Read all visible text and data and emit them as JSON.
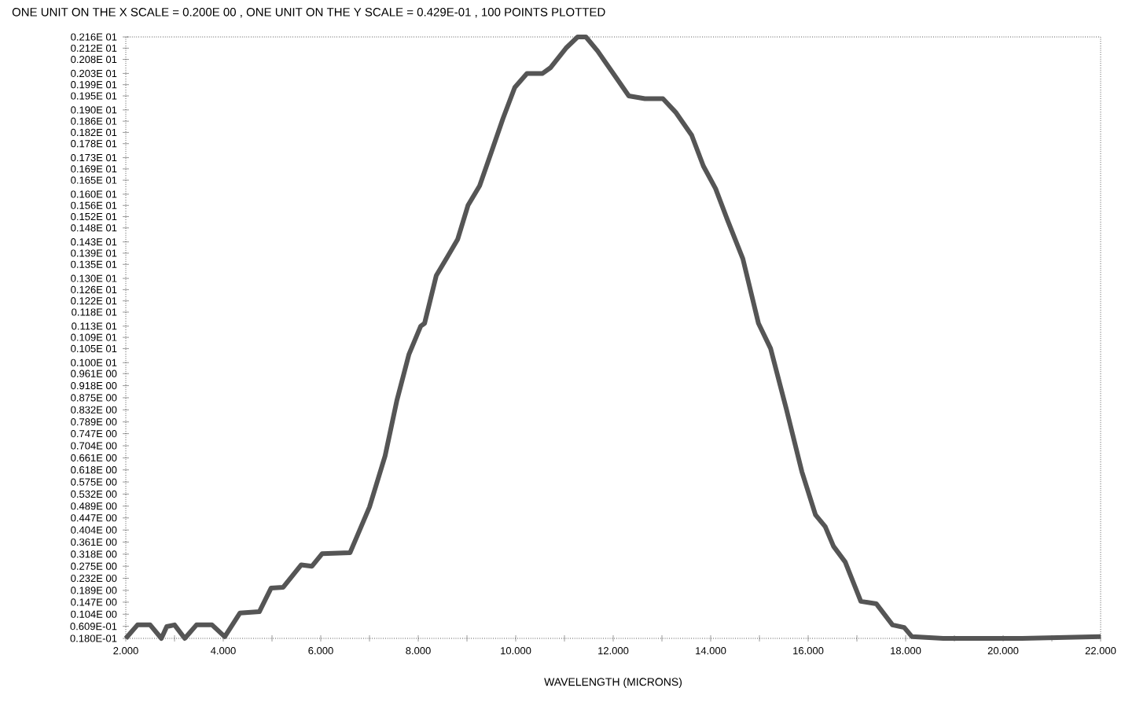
{
  "chart_data": {
    "type": "line",
    "title": "ONE UNIT ON THE X SCALE = 0.200E 00 ,        ONE UNIT ON THE Y SCALE = 0.429E-01 ,        100 POINTS PLOTTED",
    "xlabel": "WAVELENGTH (MICRONS)",
    "x": [
      2.0,
      2.24,
      2.5,
      2.73,
      2.84,
      3.0,
      3.21,
      3.45,
      3.77,
      4.03,
      4.34,
      4.74,
      4.98,
      5.23,
      5.6,
      5.82,
      6.03,
      6.6,
      6.76,
      7.0,
      7.32,
      7.56,
      7.81,
      8.05,
      8.13,
      8.37,
      8.61,
      8.81,
      9.02,
      9.26,
      9.5,
      9.74,
      9.98,
      10.23,
      10.55,
      10.71,
      11.03,
      11.27,
      11.44,
      11.68,
      12.08,
      12.32,
      12.65,
      13.02,
      13.29,
      13.61,
      13.85,
      14.1,
      14.34,
      14.66,
      14.98,
      15.23,
      15.55,
      15.87,
      16.15,
      16.35,
      16.52,
      16.76,
      17.08,
      17.4,
      17.73,
      17.97,
      18.13,
      18.77,
      20.39,
      22.0
    ],
    "series": [
      {
        "color": "#555555",
        "values": [
          0.018,
          0.066,
          0.066,
          0.018,
          0.06,
          0.066,
          0.018,
          0.066,
          0.066,
          0.024,
          0.108,
          0.113,
          0.197,
          0.2,
          0.28,
          0.275,
          0.32,
          0.323,
          0.388,
          0.486,
          0.668,
          0.864,
          1.03,
          1.13,
          1.14,
          1.31,
          1.38,
          1.44,
          1.56,
          1.63,
          1.75,
          1.87,
          1.98,
          2.03,
          2.03,
          2.05,
          2.12,
          2.16,
          2.16,
          2.11,
          2.01,
          1.95,
          1.94,
          1.94,
          1.89,
          1.81,
          1.7,
          1.62,
          1.51,
          1.37,
          1.14,
          1.05,
          0.836,
          0.612,
          0.458,
          0.416,
          0.346,
          0.29,
          0.15,
          0.141,
          0.066,
          0.057,
          0.024,
          0.018,
          0.018,
          0.024
        ]
      }
    ],
    "xlim": [
      2,
      22
    ],
    "xticks": [
      {
        "value": 2,
        "label": "2.000"
      },
      {
        "value": 3,
        "label": null
      },
      {
        "value": 4,
        "label": "4.000"
      },
      {
        "value": 5,
        "label": null
      },
      {
        "value": 6,
        "label": "6.000"
      },
      {
        "value": 7,
        "label": null
      },
      {
        "value": 8,
        "label": "8.000"
      },
      {
        "value": 9,
        "label": null
      },
      {
        "value": 10,
        "label": "10.000"
      },
      {
        "value": 11,
        "label": null
      },
      {
        "value": 12,
        "label": "12.000"
      },
      {
        "value": 13,
        "label": null
      },
      {
        "value": 14,
        "label": "14.000"
      },
      {
        "value": 15,
        "label": null
      },
      {
        "value": 16,
        "label": "16.000"
      },
      {
        "value": 17,
        "label": null
      },
      {
        "value": 18,
        "label": "18.000"
      },
      {
        "value": 19,
        "label": null
      },
      {
        "value": 20,
        "label": "20.000"
      },
      {
        "value": 21,
        "label": null
      },
      {
        "value": 22,
        "label": "22.000"
      }
    ],
    "ylim": [
      0.018,
      2.16
    ],
    "yticks": [
      {
        "value": 0.018,
        "label": "0.180E-01"
      },
      {
        "value": 0.0609,
        "label": "0.609E-01"
      },
      {
        "value": 0.104,
        "label": "0.104E 00"
      },
      {
        "value": 0.147,
        "label": "0.147E 00"
      },
      {
        "value": 0.189,
        "label": "0.189E 00"
      },
      {
        "value": 0.232,
        "label": "0.232E 00"
      },
      {
        "value": 0.275,
        "label": "0.275E 00"
      },
      {
        "value": 0.318,
        "label": "0.318E 00"
      },
      {
        "value": 0.361,
        "label": "0.361E 00"
      },
      {
        "value": 0.404,
        "label": "0.404E 00"
      },
      {
        "value": 0.447,
        "label": "0.447E 00"
      },
      {
        "value": 0.489,
        "label": "0.489E 00"
      },
      {
        "value": 0.532,
        "label": "0.532E 00"
      },
      {
        "value": 0.575,
        "label": "0.575E 00"
      },
      {
        "value": 0.618,
        "label": "0.618E 00"
      },
      {
        "value": 0.661,
        "label": "0.661E 00"
      },
      {
        "value": 0.704,
        "label": "0.704E 00"
      },
      {
        "value": 0.747,
        "label": "0.747E 00"
      },
      {
        "value": 0.789,
        "label": "0.789E 00"
      },
      {
        "value": 0.832,
        "label": "0.832E 00"
      },
      {
        "value": 0.875,
        "label": "0.875E 00"
      },
      {
        "value": 0.918,
        "label": "0.918E 00"
      },
      {
        "value": 0.961,
        "label": "0.961E 00"
      },
      {
        "value": 1.0,
        "label": "0.100E 01"
      },
      {
        "value": 1.05,
        "label": "0.105E 01"
      },
      {
        "value": 1.09,
        "label": "0.109E 01"
      },
      {
        "value": 1.13,
        "label": "0.113E 01"
      },
      {
        "value": 1.18,
        "label": "0.118E 01"
      },
      {
        "value": 1.22,
        "label": "0.122E 01"
      },
      {
        "value": 1.26,
        "label": "0.126E 01"
      },
      {
        "value": 1.3,
        "label": "0.130E 01"
      },
      {
        "value": 1.35,
        "label": "0.135E 01"
      },
      {
        "value": 1.39,
        "label": "0.139E 01"
      },
      {
        "value": 1.43,
        "label": "0.143E 01"
      },
      {
        "value": 1.48,
        "label": "0.148E 01"
      },
      {
        "value": 1.52,
        "label": "0.152E 01"
      },
      {
        "value": 1.56,
        "label": "0.156E 01"
      },
      {
        "value": 1.6,
        "label": "0.160E 01"
      },
      {
        "value": 1.65,
        "label": "0.165E 01"
      },
      {
        "value": 1.69,
        "label": "0.169E 01"
      },
      {
        "value": 1.73,
        "label": "0.173E 01"
      },
      {
        "value": 1.78,
        "label": "0.178E 01"
      },
      {
        "value": 1.82,
        "label": "0.182E 01"
      },
      {
        "value": 1.86,
        "label": "0.186E 01"
      },
      {
        "value": 1.9,
        "label": "0.190E 01"
      },
      {
        "value": 1.95,
        "label": "0.195E 01"
      },
      {
        "value": 1.99,
        "label": "0.199E 01"
      },
      {
        "value": 2.03,
        "label": "0.203E 01"
      },
      {
        "value": 2.08,
        "label": "0.208E 01"
      },
      {
        "value": 2.12,
        "label": "0.212E 01"
      },
      {
        "value": 2.16,
        "label": "0.216E 01"
      }
    ],
    "grid": false,
    "legend": false,
    "marker": "none",
    "line_style": "solid"
  }
}
